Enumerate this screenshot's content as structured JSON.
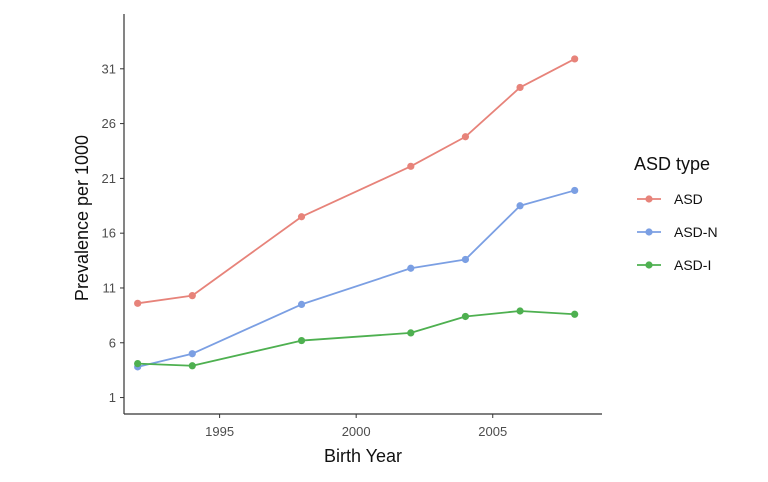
{
  "chart_data": {
    "type": "line",
    "title": "",
    "xlabel": "Birth Year",
    "ylabel": "Prevalence per 1000",
    "x": [
      1992,
      1994,
      1998,
      2002,
      2004,
      2006,
      2008
    ],
    "xlim": [
      1991.5,
      2009
    ],
    "ylim": [
      -0.5,
      36
    ],
    "xticks": [
      1995,
      2000,
      2005
    ],
    "yticks": [
      1,
      6,
      11,
      16,
      21,
      26,
      31
    ],
    "grid": false,
    "legend": {
      "title": "ASD type",
      "position": "right"
    },
    "series": [
      {
        "name": "ASD",
        "color": "#E7837A",
        "values": [
          9.6,
          10.3,
          17.5,
          22.1,
          24.8,
          29.3,
          31.9
        ]
      },
      {
        "name": "ASD-N",
        "color": "#7B9FE3",
        "values": [
          3.8,
          5.0,
          9.5,
          12.8,
          13.6,
          18.5,
          19.9
        ]
      },
      {
        "name": "ASD-I",
        "color": "#4EB050",
        "values": [
          4.1,
          3.9,
          6.2,
          6.9,
          8.4,
          8.9,
          8.6
        ]
      }
    ]
  }
}
